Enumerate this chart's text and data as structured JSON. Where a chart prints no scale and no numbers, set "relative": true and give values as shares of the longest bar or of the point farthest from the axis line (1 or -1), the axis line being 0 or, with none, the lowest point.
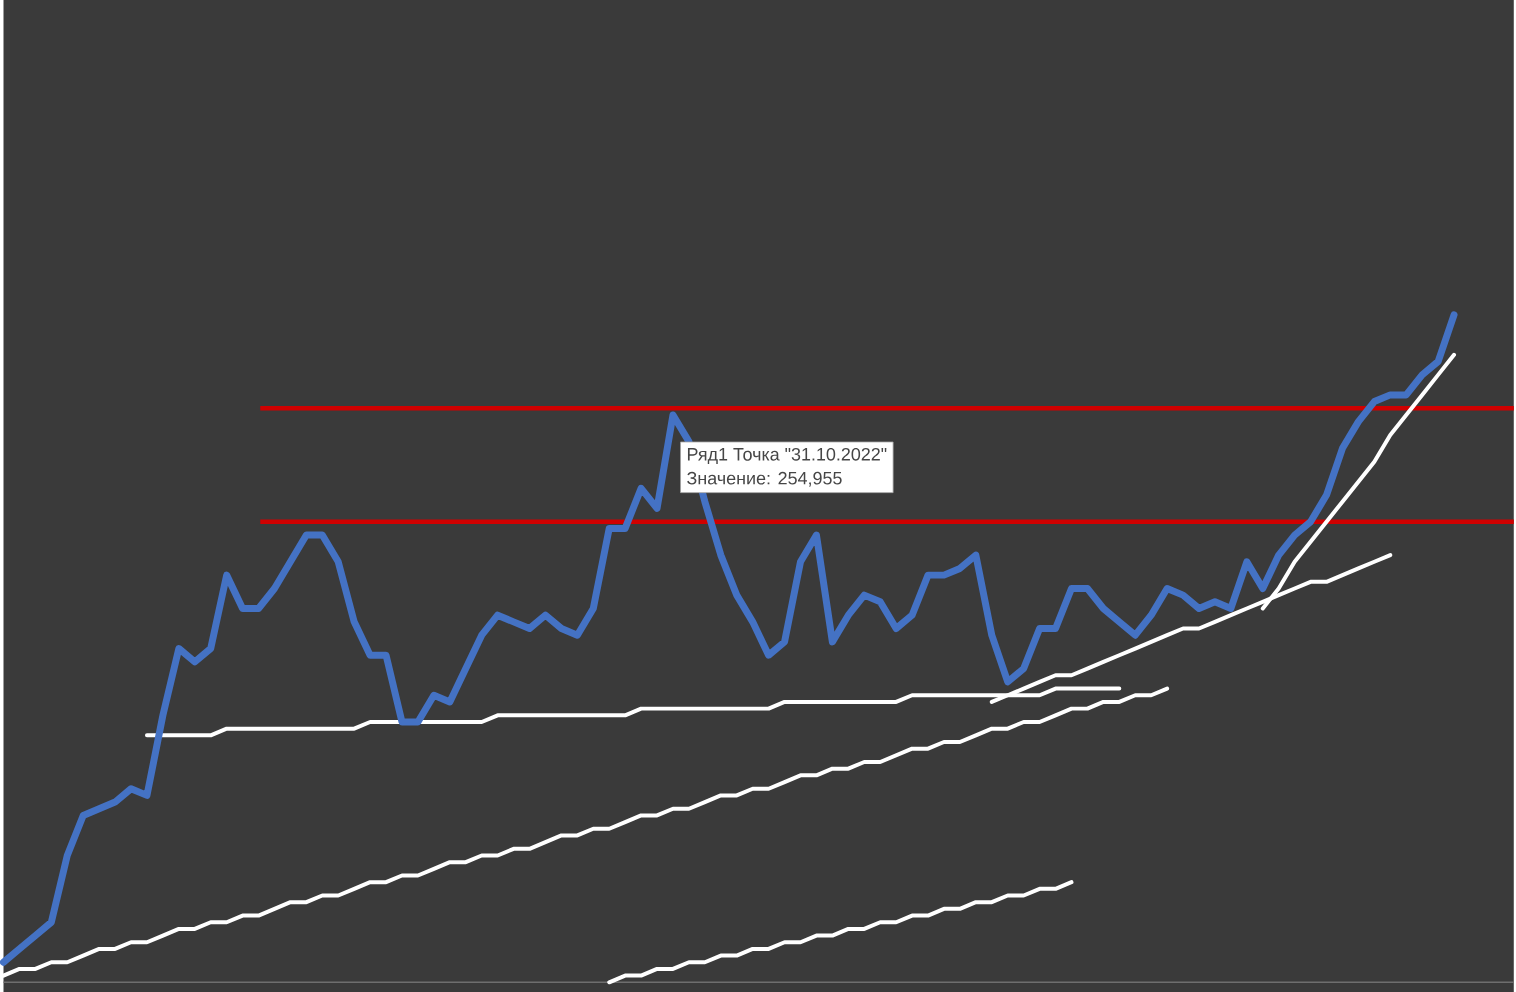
{
  "chart_data": {
    "type": "line",
    "relative": true,
    "categories": [
      null,
      null,
      null,
      null,
      null,
      null,
      null,
      null,
      null,
      null,
      null,
      null,
      null,
      null,
      null,
      null,
      null,
      null,
      null,
      null,
      null,
      null,
      null,
      null,
      null,
      null,
      null,
      null,
      null,
      null,
      null,
      null,
      null,
      null,
      null,
      null,
      null,
      null,
      null,
      null,
      null,
      null,
      null,
      null,
      null,
      null,
      null,
      null,
      null,
      null,
      null,
      null,
      null,
      null,
      null,
      null,
      null,
      null,
      null,
      null,
      null,
      null,
      null,
      null,
      null,
      null,
      null,
      null,
      null,
      null,
      null,
      null,
      null,
      null,
      null,
      null,
      null,
      null,
      null,
      null,
      null,
      null,
      null,
      null,
      null,
      null,
      null,
      null,
      null,
      null,
      null,
      null
    ],
    "series": [
      {
        "color": "#4472c4",
        "values": [
          0.03,
          0.05,
          0.07,
          0.09,
          0.19,
          0.25,
          0.26,
          0.27,
          0.29,
          0.28,
          0.4,
          0.5,
          0.48,
          0.5,
          0.61,
          0.56,
          0.56,
          0.59,
          0.63,
          0.67,
          0.67,
          0.63,
          0.54,
          0.49,
          0.49,
          0.39,
          0.39,
          0.43,
          0.42,
          0.47,
          0.52,
          0.55,
          0.54,
          0.53,
          0.55,
          0.53,
          0.52,
          0.56,
          0.68,
          0.68,
          0.74,
          0.71,
          0.85,
          0.81,
          0.72,
          0.64,
          0.58,
          0.54,
          0.49,
          0.51,
          0.63,
          0.67,
          0.51,
          0.55,
          0.58,
          0.57,
          0.53,
          0.55,
          0.61,
          0.61,
          0.62,
          0.64,
          0.52,
          0.45,
          0.47,
          0.53,
          0.53,
          0.59,
          0.59,
          0.56,
          0.54,
          0.52,
          0.55,
          0.59,
          0.58,
          0.56,
          0.57,
          0.56,
          0.63,
          0.59,
          0.64,
          0.67,
          0.69,
          0.73,
          0.8,
          0.84,
          0.87,
          0.88,
          0.88,
          0.91,
          0.93,
          1
        ]
      },
      {
        "type": "line",
        "color": "#ffffff",
        "values": [
          null,
          null,
          null,
          null,
          null,
          null,
          null,
          null,
          null,
          0.37,
          0.37,
          0.37,
          0.37,
          0.37,
          0.38,
          0.38,
          0.38,
          0.38,
          0.38,
          0.38,
          0.38,
          0.38,
          0.38,
          0.39,
          0.39,
          0.39,
          0.39,
          0.39,
          0.39,
          0.39,
          0.39,
          0.4,
          0.4,
          0.4,
          0.4,
          0.4,
          0.4,
          0.4,
          0.4,
          0.4,
          0.41,
          0.41,
          0.41,
          0.41,
          0.41,
          0.41,
          0.41,
          0.41,
          0.41,
          0.42,
          0.42,
          0.42,
          0.42,
          0.42,
          0.42,
          0.42,
          0.42,
          0.43,
          0.43,
          0.43,
          0.43,
          0.43,
          0.43,
          0.43,
          0.43,
          0.43,
          0.44,
          0.44,
          0.44,
          0.44,
          0.44,
          null,
          null,
          null,
          null,
          null,
          null,
          null,
          null,
          null,
          null,
          null,
          null,
          null,
          null,
          null,
          null,
          null,
          null,
          null,
          null,
          null
        ]
      },
      {
        "type": "line",
        "color": "#ffffff",
        "values": [
          0.01,
          0.02,
          0.02,
          0.03,
          0.03,
          0.04,
          0.05,
          0.05,
          0.06,
          0.06,
          0.07,
          0.08,
          0.08,
          0.09,
          0.09,
          0.1,
          0.1,
          0.11,
          0.12,
          0.12,
          0.13,
          0.13,
          0.14,
          0.15,
          0.15,
          0.16,
          0.16,
          0.17,
          0.18,
          0.18,
          0.19,
          0.19,
          0.2,
          0.2,
          0.21,
          0.22,
          0.22,
          0.23,
          0.23,
          0.24,
          0.25,
          0.25,
          0.26,
          0.26,
          0.27,
          0.28,
          0.28,
          0.29,
          0.29,
          0.3,
          0.31,
          0.31,
          0.32,
          0.32,
          0.33,
          0.33,
          0.34,
          0.35,
          0.35,
          0.36,
          0.36,
          0.37,
          0.38,
          0.38,
          0.39,
          0.39,
          0.4,
          0.41,
          0.41,
          0.42,
          0.42,
          0.43,
          0.43,
          0.44,
          null,
          null,
          null,
          null,
          null,
          null,
          null,
          null,
          null,
          null,
          null,
          null,
          null,
          null,
          null,
          null,
          null,
          null
        ]
      },
      {
        "type": "line",
        "color": "#ffffff",
        "values": [
          null,
          null,
          null,
          null,
          null,
          null,
          null,
          null,
          null,
          null,
          null,
          null,
          null,
          null,
          null,
          null,
          null,
          null,
          null,
          null,
          null,
          null,
          null,
          null,
          null,
          null,
          null,
          null,
          null,
          null,
          null,
          null,
          null,
          null,
          null,
          null,
          null,
          null,
          null,
          null,
          null,
          null,
          null,
          null,
          null,
          null,
          null,
          null,
          null,
          null,
          null,
          null,
          null,
          null,
          null,
          null,
          null,
          null,
          null,
          null,
          null,
          null,
          0.42,
          0.43,
          0.44,
          0.45,
          0.46,
          0.46,
          0.47,
          0.48,
          0.49,
          0.5,
          0.51,
          0.52,
          0.53,
          0.53,
          0.54,
          0.55,
          0.56,
          0.57,
          0.58,
          0.59,
          0.6,
          0.6,
          0.61,
          0.62,
          0.63,
          0.64,
          null,
          null,
          null,
          null
        ]
      },
      {
        "type": "line",
        "color": "#ffffff",
        "values": [
          null,
          null,
          null,
          null,
          null,
          null,
          null,
          null,
          null,
          null,
          null,
          null,
          null,
          null,
          null,
          null,
          null,
          null,
          null,
          null,
          null,
          null,
          null,
          null,
          null,
          null,
          null,
          null,
          null,
          null,
          null,
          null,
          null,
          null,
          null,
          null,
          null,
          null,
          null,
          null,
          null,
          null,
          null,
          null,
          null,
          null,
          null,
          null,
          null,
          null,
          null,
          null,
          null,
          null,
          null,
          null,
          null,
          null,
          null,
          null,
          null,
          null,
          null,
          null,
          null,
          null,
          null,
          null,
          null,
          null,
          null,
          null,
          null,
          null,
          null,
          null,
          null,
          null,
          null,
          0.56,
          0.59,
          0.63,
          0.66,
          0.69,
          0.72,
          0.75,
          0.78,
          0.82,
          0.85,
          0.88,
          0.91,
          0.94
        ]
      },
      {
        "type": "line",
        "color": "#ffffff",
        "values": [
          null,
          null,
          null,
          null,
          null,
          null,
          null,
          null,
          null,
          null,
          null,
          null,
          null,
          null,
          null,
          null,
          null,
          null,
          null,
          null,
          null,
          null,
          null,
          null,
          null,
          null,
          null,
          null,
          null,
          null,
          null,
          null,
          null,
          null,
          null,
          null,
          null,
          null,
          0.0,
          0.01,
          0.01,
          0.02,
          0.02,
          0.03,
          0.03,
          0.04,
          0.04,
          0.05,
          0.05,
          0.06,
          0.06,
          0.07,
          0.07,
          0.08,
          0.08,
          0.09,
          0.09,
          0.1,
          0.1,
          0.11,
          0.11,
          0.12,
          0.12,
          0.13,
          0.13,
          0.14,
          0.14,
          0.15,
          null,
          null,
          null,
          null,
          null,
          null,
          null,
          null,
          null,
          null,
          null,
          null,
          null,
          null,
          null,
          null,
          null,
          null,
          null,
          null,
          null,
          null,
          null,
          null
        ]
      }
    ],
    "ref_lines": [
      {
        "axis": "y",
        "value": 0.86,
        "color": "#d00000"
      },
      {
        "axis": "y",
        "value": 0.69,
        "color": "#d00000"
      }
    ],
    "annotations": [
      "Ряд1 Точка \"31.10.2022\"",
      "Значение: 254,955"
    ],
    "marker": "none",
    "line_style": "solid"
  }
}
